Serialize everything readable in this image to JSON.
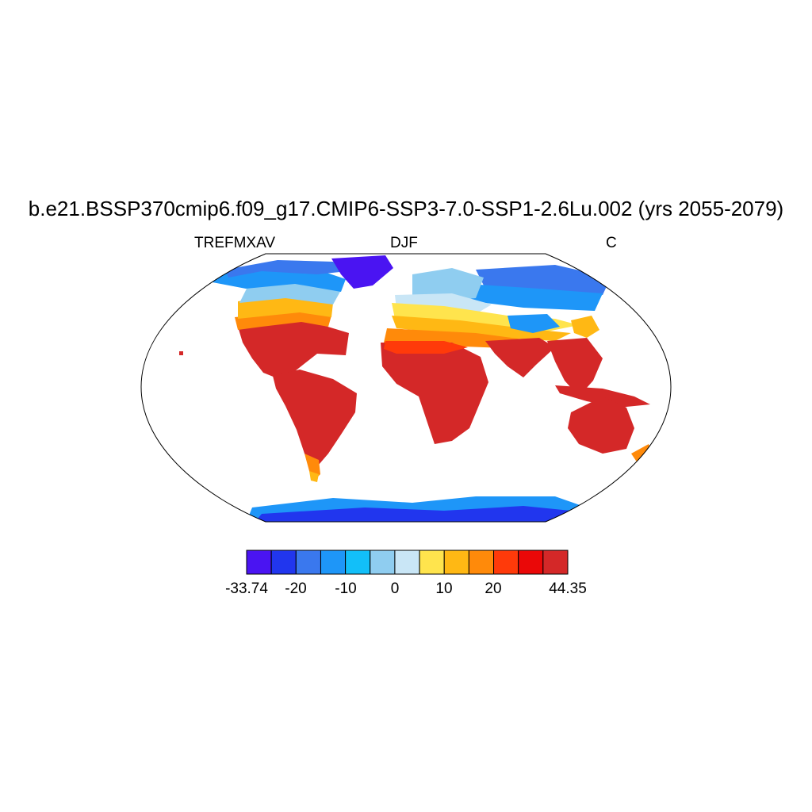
{
  "title": "b.e21.BSSP370cmip6.f09_g17.CMIP6-SSP3-7.0-SSP1-2.6Lu.002 (yrs 2055-2079)",
  "subtitle_left": "TREFMXAV",
  "subtitle_center": "DJF",
  "subtitle_right": "C",
  "colorbar": {
    "colors": [
      "#4a14f2",
      "#2136ee",
      "#3a78ee",
      "#1e96f8",
      "#12bff9",
      "#8fcdf0",
      "#c9e6f6",
      "#ffe44d",
      "#ffb814",
      "#ff8a0a",
      "#ff3a0a",
      "#ea0808",
      "#d42828"
    ],
    "labels": [
      {
        "text": "-33.74",
        "boundary": 0
      },
      {
        "text": "-20",
        "boundary": 1
      },
      {
        "text": "-10",
        "boundary": 2
      },
      {
        "text": "0",
        "boundary": 3
      },
      {
        "text": "10",
        "boundary": 4
      },
      {
        "text": "20",
        "boundary": 5
      },
      {
        "text": "44.35",
        "boundary": 6
      }
    ]
  }
}
